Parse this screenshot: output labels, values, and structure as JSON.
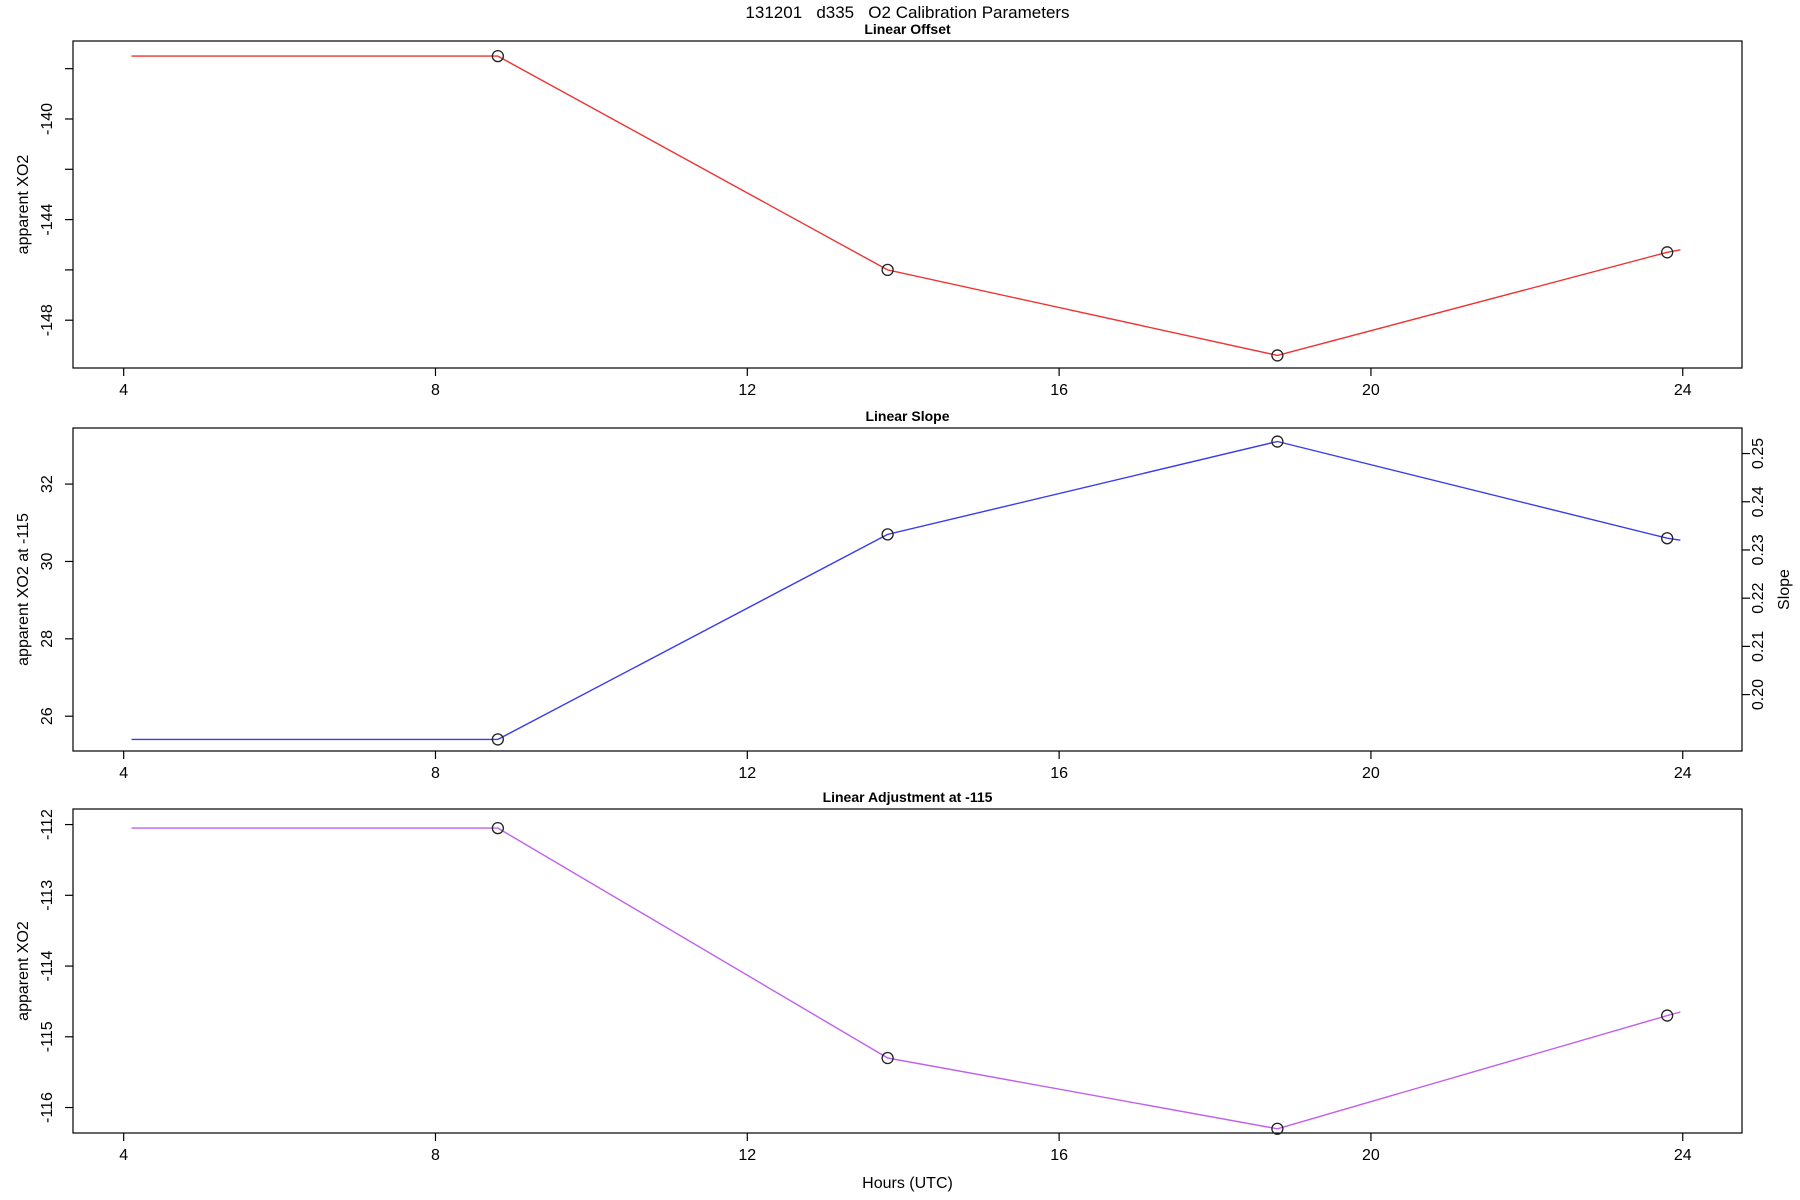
{
  "page": {
    "title": "131201   d335   O2 Calibration Parameters",
    "xlabel": "Hours (UTC)",
    "background": "#ffffff",
    "axis_color": "#000000",
    "marker_color": "#222222"
  },
  "chart_data": [
    {
      "type": "line",
      "title": "Linear Offset",
      "ylabel": "apparent XO2",
      "series_color": "#ee3333",
      "marker": "open-circle",
      "xlim": [
        3.35,
        24.76
      ],
      "ylim": [
        -149.9,
        -136.9
      ],
      "xticks": [
        {
          "v": 4,
          "label": "4"
        },
        {
          "v": 8,
          "label": "8"
        },
        {
          "v": 12,
          "label": "12"
        },
        {
          "v": 16,
          "label": "16"
        },
        {
          "v": 20,
          "label": "20"
        },
        {
          "v": 24,
          "label": "24"
        }
      ],
      "yticks": [
        {
          "v": -138,
          "label": ""
        },
        {
          "v": -140,
          "label": "-140"
        },
        {
          "v": -142,
          "label": ""
        },
        {
          "v": -144,
          "label": "-144"
        },
        {
          "v": -146,
          "label": ""
        },
        {
          "v": -148,
          "label": "-148"
        }
      ],
      "points": [
        {
          "x": 4.1,
          "y": -137.5,
          "marker": false
        },
        {
          "x": 8.8,
          "y": -137.5,
          "marker": true
        },
        {
          "x": 13.8,
          "y": -146.0,
          "marker": true
        },
        {
          "x": 18.8,
          "y": -149.4,
          "marker": true
        },
        {
          "x": 23.8,
          "y": -145.3,
          "marker": true
        },
        {
          "x": 23.97,
          "y": -145.2,
          "marker": false
        }
      ]
    },
    {
      "type": "line",
      "title": "Linear Slope",
      "ylabel": "apparent XO2 at -115",
      "y2label": "Slope",
      "series_color": "#3a3aee",
      "marker": "open-circle",
      "xlim": [
        3.35,
        24.76
      ],
      "ylim": [
        25.1,
        33.45
      ],
      "y2lim": [
        0.1883,
        0.2553
      ],
      "xticks": [
        {
          "v": 4,
          "label": "4"
        },
        {
          "v": 8,
          "label": "8"
        },
        {
          "v": 12,
          "label": "12"
        },
        {
          "v": 16,
          "label": "16"
        },
        {
          "v": 20,
          "label": "20"
        },
        {
          "v": 24,
          "label": "24"
        }
      ],
      "yticks": [
        {
          "v": 26,
          "label": "26"
        },
        {
          "v": 28,
          "label": "28"
        },
        {
          "v": 30,
          "label": "30"
        },
        {
          "v": 32,
          "label": "32"
        }
      ],
      "y2ticks": [
        {
          "v": 0.2,
          "label": "0.20"
        },
        {
          "v": 0.21,
          "label": "0.21"
        },
        {
          "v": 0.22,
          "label": "0.22"
        },
        {
          "v": 0.23,
          "label": "0.23"
        },
        {
          "v": 0.24,
          "label": "0.24"
        },
        {
          "v": 0.25,
          "label": "0.25"
        }
      ],
      "points": [
        {
          "x": 4.1,
          "y": 25.4,
          "marker": false
        },
        {
          "x": 8.8,
          "y": 25.4,
          "marker": true
        },
        {
          "x": 13.8,
          "y": 30.7,
          "marker": true
        },
        {
          "x": 18.8,
          "y": 33.1,
          "marker": true
        },
        {
          "x": 23.8,
          "y": 30.6,
          "marker": true
        },
        {
          "x": 23.97,
          "y": 30.55,
          "marker": false
        }
      ],
      "y2_point_values": [
        0.19,
        0.19,
        0.233,
        0.2525,
        0.232,
        0.232
      ]
    },
    {
      "type": "line",
      "title": "Linear Adjustment at -115",
      "ylabel": "apparent XO2",
      "series_color": "#c060ee",
      "marker": "open-circle",
      "xlim": [
        3.35,
        24.76
      ],
      "ylim": [
        -116.36,
        -111.78
      ],
      "xticks": [
        {
          "v": 4,
          "label": "4"
        },
        {
          "v": 8,
          "label": "8"
        },
        {
          "v": 12,
          "label": "12"
        },
        {
          "v": 16,
          "label": "16"
        },
        {
          "v": 20,
          "label": "20"
        },
        {
          "v": 24,
          "label": "24"
        }
      ],
      "yticks": [
        {
          "v": -112,
          "label": "-112"
        },
        {
          "v": -113,
          "label": "-113"
        },
        {
          "v": -114,
          "label": "-114"
        },
        {
          "v": -115,
          "label": "-115"
        },
        {
          "v": -116,
          "label": "-116"
        }
      ],
      "points": [
        {
          "x": 4.1,
          "y": -112.05,
          "marker": false
        },
        {
          "x": 8.8,
          "y": -112.05,
          "marker": true
        },
        {
          "x": 13.8,
          "y": -115.3,
          "marker": true
        },
        {
          "x": 18.8,
          "y": -116.3,
          "marker": true
        },
        {
          "x": 23.8,
          "y": -114.7,
          "marker": true
        },
        {
          "x": 23.97,
          "y": -114.65,
          "marker": false
        }
      ]
    }
  ]
}
